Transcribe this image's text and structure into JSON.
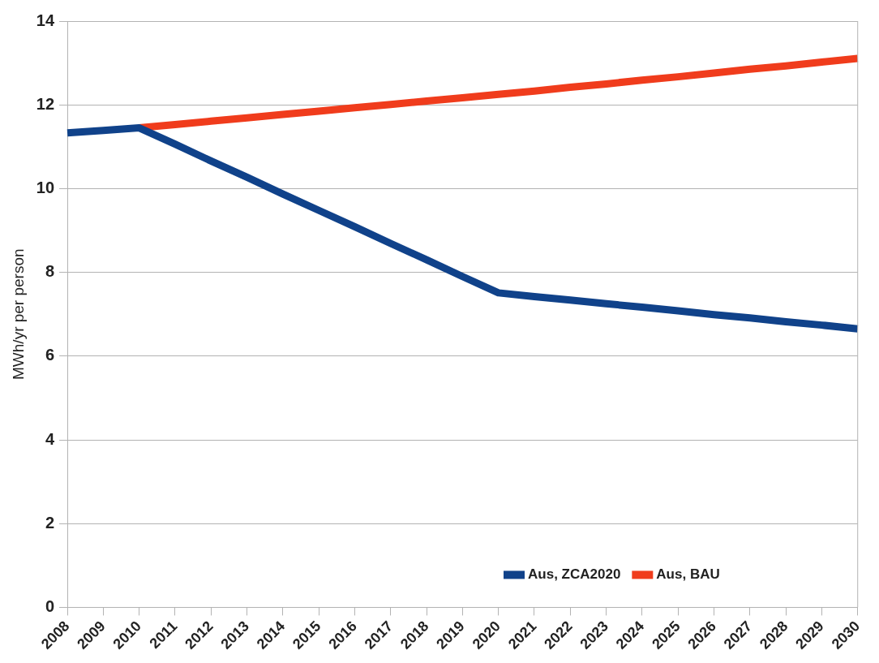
{
  "chart_data": {
    "type": "line",
    "ylabel": "MWh/yr per person",
    "categories": [
      "2008",
      "2009",
      "2010",
      "2011",
      "2012",
      "2013",
      "2014",
      "2015",
      "2016",
      "2017",
      "2018",
      "2019",
      "2020",
      "2021",
      "2022",
      "2023",
      "2024",
      "2025",
      "2026",
      "2027",
      "2028",
      "2029",
      "2030"
    ],
    "series": [
      {
        "name": "Aus, ZCA2020",
        "color": "#10428a",
        "values": [
          11.33,
          11.39,
          11.45,
          11.06,
          10.66,
          10.27,
          9.87,
          9.48,
          9.09,
          8.69,
          8.3,
          7.9,
          7.51,
          7.42,
          7.34,
          7.25,
          7.17,
          7.08,
          6.99,
          6.91,
          6.82,
          6.74,
          6.65
        ]
      },
      {
        "name": "Aus, BAU",
        "color": "#f03c1c",
        "values": [
          null,
          null,
          11.45,
          11.53,
          11.61,
          11.69,
          11.77,
          11.85,
          11.93,
          12.01,
          12.09,
          12.17,
          12.25,
          12.33,
          12.42,
          12.5,
          12.59,
          12.67,
          12.76,
          12.85,
          12.93,
          13.02,
          13.11
        ]
      }
    ],
    "ylim": [
      0,
      14
    ],
    "yticks": [
      0,
      2,
      4,
      6,
      8,
      10,
      12,
      14
    ],
    "grid": "y",
    "legend": "bottom right",
    "marker": "none",
    "line_style": "solid"
  }
}
